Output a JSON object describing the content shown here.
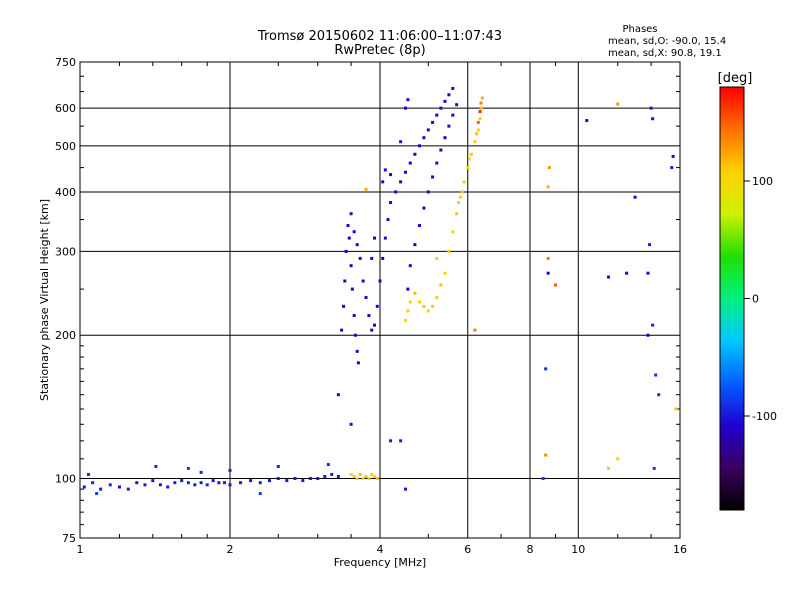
{
  "chart_data": {
    "type": "scatter",
    "title": "Tromsø 20150602 11:06:00–11:07:43",
    "subtitle": "RwPretec (8p)",
    "xlabel": "Frequency [MHz]",
    "ylabel": "Stationary phase Virtual Height [km]",
    "x_scale": "log",
    "y_scale": "log",
    "xlim": [
      1,
      16
    ],
    "ylim": [
      75,
      750
    ],
    "x_ticks": [
      1,
      2,
      4,
      6,
      8,
      10,
      16
    ],
    "y_ticks": [
      75,
      100,
      200,
      300,
      400,
      500,
      600,
      750
    ],
    "grid": true,
    "phase_info": {
      "heading": "Phases",
      "o_line": "mean, sd,O: -90.0, 15.4",
      "x_line": "mean, sd,X:  90.8, 19.1"
    },
    "colorbar": {
      "label": "[deg]",
      "range": [
        -180,
        180
      ],
      "ticks": [
        100,
        0,
        -100
      ],
      "colors": [
        "#000000",
        "#3b0060",
        "#2000d0",
        "#0060ff",
        "#00c8ff",
        "#00f080",
        "#20e000",
        "#d0f000",
        "#ffd000",
        "#ff7000",
        "#ff0000"
      ]
    },
    "series": [
      {
        "points": [
          [
            1.02,
            96,
            -100
          ],
          [
            1.06,
            98,
            -95
          ],
          [
            1.1,
            95,
            -100
          ],
          [
            1.15,
            97,
            -98
          ],
          [
            1.2,
            96,
            -102
          ],
          [
            1.25,
            95,
            -97
          ],
          [
            1.3,
            98,
            -100
          ],
          [
            1.35,
            97,
            -96
          ],
          [
            1.4,
            99,
            -103
          ],
          [
            1.45,
            97,
            -99
          ],
          [
            1.5,
            96,
            -100
          ],
          [
            1.55,
            98,
            -97
          ],
          [
            1.6,
            99,
            -101
          ],
          [
            1.65,
            98,
            -95
          ],
          [
            1.7,
            97,
            -98
          ],
          [
            1.75,
            98,
            -100
          ],
          [
            1.8,
            97,
            -96
          ],
          [
            1.85,
            99,
            -104
          ],
          [
            1.9,
            98,
            -99
          ],
          [
            1.95,
            98,
            -100
          ],
          [
            2.0,
            97,
            -97
          ],
          [
            2.1,
            98,
            -99
          ],
          [
            2.2,
            99,
            -101
          ],
          [
            2.3,
            98,
            -96
          ],
          [
            2.4,
            99,
            -100
          ],
          [
            2.5,
            100,
            -98
          ],
          [
            2.6,
            99,
            -99
          ],
          [
            2.7,
            100,
            -97
          ],
          [
            2.8,
            99,
            -101
          ],
          [
            2.9,
            100,
            -100
          ],
          [
            3.0,
            100,
            -98
          ],
          [
            3.1,
            101,
            -99
          ],
          [
            3.2,
            102,
            -97
          ],
          [
            3.3,
            101,
            -100
          ],
          [
            1.04,
            102,
            -90
          ],
          [
            1.08,
            93,
            -85
          ],
          [
            1.42,
            106,
            -92
          ],
          [
            1.65,
            105,
            -88
          ],
          [
            1.75,
            103,
            -91
          ],
          [
            2.0,
            104,
            -93
          ],
          [
            2.5,
            106,
            -90
          ],
          [
            2.3,
            93,
            -85
          ],
          [
            3.15,
            107,
            -90
          ]
        ]
      },
      {
        "points": [
          [
            3.35,
            205,
            -110
          ],
          [
            3.38,
            230,
            -112
          ],
          [
            3.4,
            260,
            -115
          ],
          [
            3.42,
            300,
            -108
          ],
          [
            3.45,
            340,
            -110
          ],
          [
            3.47,
            320,
            -113
          ],
          [
            3.5,
            280,
            -109
          ],
          [
            3.52,
            250,
            -111
          ],
          [
            3.55,
            220,
            -114
          ],
          [
            3.57,
            200,
            -110
          ],
          [
            3.6,
            185,
            -108
          ],
          [
            3.62,
            175,
            -112
          ],
          [
            3.5,
            360,
            -110
          ],
          [
            3.55,
            330,
            -107
          ],
          [
            3.6,
            310,
            -113
          ],
          [
            3.65,
            290,
            -109
          ],
          [
            3.7,
            260,
            -110
          ],
          [
            3.75,
            240,
            -112
          ],
          [
            3.8,
            220,
            -108
          ],
          [
            3.85,
            205,
            -111
          ],
          [
            3.9,
            210,
            -114
          ],
          [
            3.95,
            230,
            -110
          ],
          [
            4.0,
            260,
            -108
          ],
          [
            4.05,
            290,
            -112
          ],
          [
            4.1,
            320,
            -109
          ],
          [
            4.15,
            350,
            -111
          ],
          [
            4.2,
            380,
            -110
          ],
          [
            4.3,
            400,
            -108
          ],
          [
            4.4,
            420,
            -112
          ],
          [
            4.5,
            440,
            -110
          ],
          [
            4.6,
            460,
            -109
          ],
          [
            4.7,
            480,
            -111
          ],
          [
            4.8,
            500,
            -108
          ],
          [
            4.9,
            520,
            -112
          ],
          [
            5.0,
            540,
            -110
          ],
          [
            5.1,
            560,
            -109
          ],
          [
            5.2,
            580,
            -111
          ],
          [
            5.3,
            600,
            -110
          ],
          [
            5.4,
            620,
            -108
          ],
          [
            5.5,
            640,
            -112
          ],
          [
            5.6,
            660,
            -110
          ],
          [
            4.55,
            250,
            -110
          ],
          [
            4.6,
            280,
            -108
          ],
          [
            4.7,
            310,
            -111
          ],
          [
            4.8,
            340,
            -109
          ],
          [
            4.9,
            370,
            -110
          ],
          [
            5.0,
            400,
            -112
          ],
          [
            5.1,
            430,
            -110
          ],
          [
            5.2,
            460,
            -108
          ],
          [
            5.3,
            490,
            -111
          ],
          [
            5.4,
            520,
            -109
          ],
          [
            5.5,
            550,
            -110
          ],
          [
            5.6,
            580,
            -112
          ],
          [
            5.7,
            610,
            -110
          ],
          [
            4.05,
            420,
            -108
          ],
          [
            4.1,
            445,
            -110
          ],
          [
            4.2,
            435,
            -112
          ],
          [
            4.4,
            510,
            -109
          ],
          [
            4.5,
            600,
            -110
          ],
          [
            4.55,
            625,
            -108
          ],
          [
            3.9,
            320,
            -111
          ],
          [
            3.85,
            290,
            -110
          ],
          [
            3.3,
            150,
            -105
          ],
          [
            3.5,
            130,
            -102
          ],
          [
            4.2,
            120,
            -100
          ],
          [
            4.4,
            120,
            -98
          ],
          [
            4.5,
            95,
            -100
          ],
          [
            8.5,
            100,
            -85
          ],
          [
            8.6,
            170,
            -90
          ],
          [
            8.7,
            270,
            -110
          ],
          [
            11.5,
            265,
            -108
          ],
          [
            12.5,
            270,
            -105
          ],
          [
            13.8,
            270,
            -112
          ],
          [
            13.0,
            390,
            -110
          ],
          [
            14.0,
            600,
            -100
          ],
          [
            14.1,
            570,
            -105
          ],
          [
            15.4,
            450,
            -100
          ],
          [
            15.5,
            475,
            -110
          ],
          [
            13.9,
            310,
            -95
          ],
          [
            14.1,
            210,
            -92
          ],
          [
            14.3,
            165,
            -90
          ],
          [
            14.5,
            150,
            -88
          ],
          [
            14.2,
            105,
            -86
          ],
          [
            10.4,
            565,
            -110
          ],
          [
            13.8,
            200,
            -110
          ]
        ]
      },
      {
        "points": [
          [
            3.5,
            102,
            105
          ],
          [
            3.55,
            101,
            110
          ],
          [
            3.6,
            100,
            100
          ],
          [
            3.65,
            102,
            115
          ],
          [
            3.7,
            100,
            108
          ],
          [
            3.75,
            101,
            112
          ],
          [
            3.8,
            100,
            104
          ],
          [
            3.85,
            102,
            110
          ],
          [
            3.9,
            101,
            107
          ],
          [
            3.95,
            100,
            113
          ],
          [
            4.5,
            215,
            105
          ],
          [
            4.55,
            225,
            110
          ],
          [
            4.6,
            235,
            100
          ],
          [
            4.7,
            245,
            115
          ],
          [
            4.8,
            235,
            108
          ],
          [
            4.9,
            230,
            112
          ],
          [
            5.0,
            225,
            104
          ],
          [
            5.1,
            230,
            110
          ],
          [
            5.2,
            240,
            107
          ],
          [
            5.3,
            255,
            113
          ],
          [
            5.4,
            270,
            106
          ],
          [
            5.5,
            300,
            110
          ],
          [
            5.6,
            330,
            105
          ],
          [
            5.7,
            360,
            112
          ],
          [
            5.8,
            390,
            108
          ],
          [
            5.9,
            420,
            110
          ],
          [
            6.0,
            450,
            106
          ],
          [
            6.1,
            480,
            112
          ],
          [
            6.2,
            510,
            108
          ],
          [
            6.3,
            540,
            110
          ],
          [
            6.35,
            570,
            105
          ],
          [
            6.4,
            600,
            115
          ],
          [
            6.42,
            630,
            120
          ],
          [
            5.75,
            380,
            109
          ],
          [
            5.85,
            400,
            111
          ],
          [
            6.05,
            470,
            107
          ],
          [
            6.25,
            530,
            113
          ],
          [
            6.3,
            560,
            150
          ],
          [
            6.35,
            590,
            170
          ],
          [
            6.38,
            615,
            140
          ],
          [
            8.7,
            410,
            120
          ],
          [
            8.75,
            450,
            130
          ],
          [
            8.7,
            290,
            140
          ],
          [
            8.6,
            112,
            135
          ],
          [
            9.0,
            255,
            150
          ],
          [
            12.0,
            612,
            130
          ],
          [
            11.5,
            105,
            110
          ],
          [
            12.0,
            110,
            100
          ],
          [
            15.7,
            140,
            110
          ],
          [
            6.2,
            205,
            140
          ],
          [
            3.75,
            405,
            120
          ],
          [
            5.2,
            290,
            110
          ]
        ]
      }
    ]
  }
}
